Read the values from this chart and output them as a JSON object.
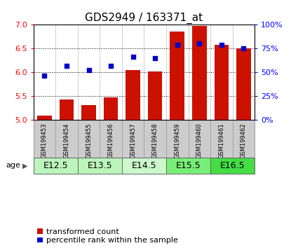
{
  "title": "GDS2949 / 163371_at",
  "samples": [
    "GSM199453",
    "GSM199454",
    "GSM199455",
    "GSM199456",
    "GSM199457",
    "GSM199458",
    "GSM199459",
    "GSM199460",
    "GSM199461",
    "GSM199462"
  ],
  "transformed_count": [
    5.08,
    5.42,
    5.31,
    5.47,
    6.04,
    6.02,
    6.86,
    6.98,
    6.57,
    6.5
  ],
  "percentile_rank": [
    46,
    57,
    52,
    57,
    66,
    65,
    79,
    80,
    79,
    75
  ],
  "ylim_left": [
    5.0,
    7.0
  ],
  "ylim_right": [
    0,
    100
  ],
  "yticks_left": [
    5.0,
    5.5,
    6.0,
    6.5,
    7.0
  ],
  "yticks_right": [
    0,
    25,
    50,
    75,
    100
  ],
  "ytick_labels_right": [
    "0%",
    "25%",
    "50%",
    "75%",
    "100%"
  ],
  "bar_color": "#cc1100",
  "dot_color": "#0000cc",
  "age_groups": [
    {
      "label": "E12.5",
      "samples": [
        0,
        1
      ],
      "color": "#aaffaa"
    },
    {
      "label": "E13.5",
      "samples": [
        2,
        3
      ],
      "color": "#aaffaa"
    },
    {
      "label": "E14.5",
      "samples": [
        4,
        5
      ],
      "color": "#ccffcc"
    },
    {
      "label": "E15.5",
      "samples": [
        6,
        7
      ],
      "color": "#77ee77"
    },
    {
      "label": "E16.5",
      "samples": [
        8,
        9
      ],
      "color": "#55dd55"
    }
  ],
  "background_color": "#ffffff",
  "plot_bg": "#ffffff",
  "title_fontsize": 11,
  "tick_fontsize": 8,
  "legend_fontsize": 8,
  "sample_label_fontsize": 6,
  "age_label_fontsize": 9
}
